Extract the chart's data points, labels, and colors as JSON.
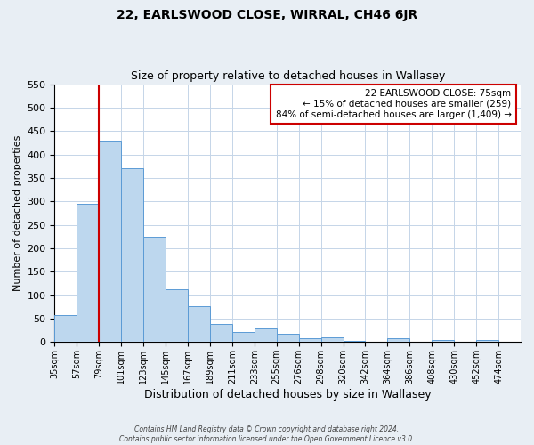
{
  "title": "22, EARLSWOOD CLOSE, WIRRAL, CH46 6JR",
  "subtitle": "Size of property relative to detached houses in Wallasey",
  "xlabel": "Distribution of detached houses by size in Wallasey",
  "ylabel": "Number of detached properties",
  "bar_values": [
    57,
    295,
    430,
    370,
    225,
    113,
    76,
    38,
    22,
    29,
    17,
    9,
    10,
    3,
    0,
    8,
    0,
    5,
    0,
    4
  ],
  "bar_labels": [
    "35sqm",
    "57sqm",
    "79sqm",
    "101sqm",
    "123sqm",
    "145sqm",
    "167sqm",
    "189sqm",
    "211sqm",
    "233sqm",
    "255sqm",
    "276sqm",
    "298sqm",
    "320sqm",
    "342sqm",
    "364sqm",
    "386sqm",
    "408sqm",
    "430sqm",
    "452sqm",
    "474sqm"
  ],
  "bar_color": "#bdd7ee",
  "bar_edgecolor": "#5b9bd5",
  "ylim": [
    0,
    550
  ],
  "yticks": [
    0,
    50,
    100,
    150,
    200,
    250,
    300,
    350,
    400,
    450,
    500,
    550
  ],
  "property_line_x": 79,
  "annotation_title": "22 EARLSWOOD CLOSE: 75sqm",
  "annotation_line1": "← 15% of detached houses are smaller (259)",
  "annotation_line2": "84% of semi-detached houses are larger (1,409) →",
  "annotation_box_color": "#ffffff",
  "annotation_box_edgecolor": "#cc0000",
  "vline_color": "#cc0000",
  "footer1": "Contains HM Land Registry data © Crown copyright and database right 2024.",
  "footer2": "Contains public sector information licensed under the Open Government Licence v3.0.",
  "bg_color": "#e8eef4",
  "plot_bg_color": "#ffffff",
  "grid_color": "#c5d5e8"
}
